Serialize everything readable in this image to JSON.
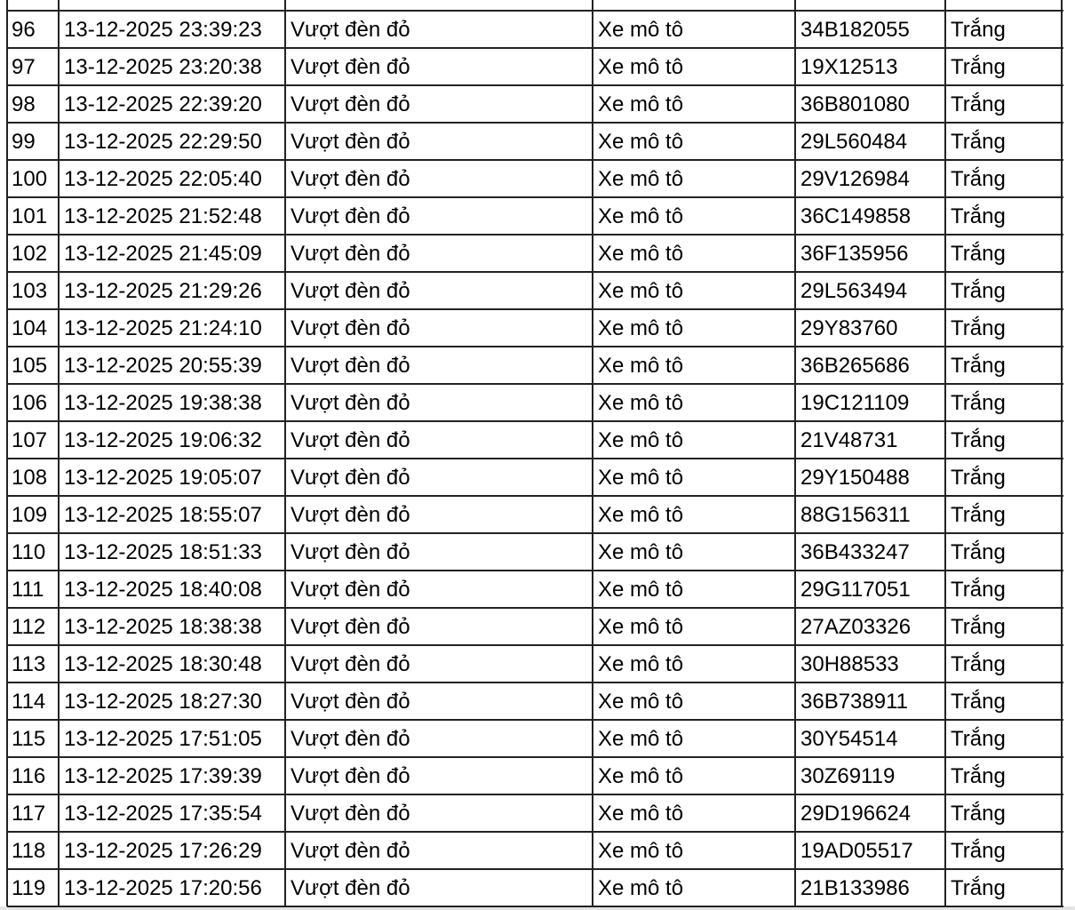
{
  "table": {
    "rows": [
      [
        "96",
        "13-12-2025 23:39:23",
        "Vượt đèn đỏ",
        "Xe mô tô",
        "34B182055",
        "Trắng"
      ],
      [
        "97",
        "13-12-2025 23:20:38",
        "Vượt đèn đỏ",
        "Xe mô tô",
        "19X12513",
        "Trắng"
      ],
      [
        "98",
        "13-12-2025 22:39:20",
        "Vượt đèn đỏ",
        "Xe mô tô",
        "36B801080",
        "Trắng"
      ],
      [
        "99",
        "13-12-2025 22:29:50",
        "Vượt đèn đỏ",
        "Xe mô tô",
        "29L560484",
        "Trắng"
      ],
      [
        "100",
        "13-12-2025 22:05:40",
        "Vượt đèn đỏ",
        "Xe mô tô",
        "29V126984",
        "Trắng"
      ],
      [
        "101",
        "13-12-2025 21:52:48",
        "Vượt đèn đỏ",
        "Xe mô tô",
        "36C149858",
        "Trắng"
      ],
      [
        "102",
        "13-12-2025 21:45:09",
        "Vượt đèn đỏ",
        "Xe mô tô",
        "36F135956",
        "Trắng"
      ],
      [
        "103",
        "13-12-2025 21:29:26",
        "Vượt đèn đỏ",
        "Xe mô tô",
        "29L563494",
        "Trắng"
      ],
      [
        "104",
        "13-12-2025 21:24:10",
        "Vượt đèn đỏ",
        "Xe mô tô",
        "29Y83760",
        "Trắng"
      ],
      [
        "105",
        "13-12-2025 20:55:39",
        "Vượt đèn đỏ",
        "Xe mô tô",
        "36B265686",
        "Trắng"
      ],
      [
        "106",
        "13-12-2025 19:38:38",
        "Vượt đèn đỏ",
        "Xe mô tô",
        "19C121109",
        "Trắng"
      ],
      [
        "107",
        "13-12-2025 19:06:32",
        "Vượt đèn đỏ",
        "Xe mô tô",
        "21V48731",
        "Trắng"
      ],
      [
        "108",
        "13-12-2025 19:05:07",
        "Vượt đèn đỏ",
        "Xe mô tô",
        "29Y150488",
        "Trắng"
      ],
      [
        "109",
        "13-12-2025 18:55:07",
        "Vượt đèn đỏ",
        "Xe mô tô",
        "88G156311",
        "Trắng"
      ],
      [
        "110",
        "13-12-2025 18:51:33",
        "Vượt đèn đỏ",
        "Xe mô tô",
        "36B433247",
        "Trắng"
      ],
      [
        "111",
        "13-12-2025 18:40:08",
        "Vượt đèn đỏ",
        "Xe mô tô",
        "29G117051",
        "Trắng"
      ],
      [
        "112",
        "13-12-2025 18:38:38",
        "Vượt đèn đỏ",
        "Xe mô tô",
        "27AZ03326",
        "Trắng"
      ],
      [
        "113",
        "13-12-2025 18:30:48",
        "Vượt đèn đỏ",
        "Xe mô tô",
        "30H88533",
        "Trắng"
      ],
      [
        "114",
        "13-12-2025 18:27:30",
        "Vượt đèn đỏ",
        "Xe mô tô",
        "36B738911",
        "Trắng"
      ],
      [
        "115",
        "13-12-2025 17:51:05",
        "Vượt đèn đỏ",
        "Xe mô tô",
        "30Y54514",
        "Trắng"
      ],
      [
        "116",
        "13-12-2025 17:39:39",
        "Vượt đèn đỏ",
        "Xe mô tô",
        "30Z69119",
        "Trắng"
      ],
      [
        "117",
        "13-12-2025 17:35:54",
        "Vượt đèn đỏ",
        "Xe mô tô",
        "29D196624",
        "Trắng"
      ],
      [
        "118",
        "13-12-2025 17:26:29",
        "Vượt đèn đỏ",
        "Xe mô tô",
        "19AD05517",
        "Trắng"
      ],
      [
        "119",
        "13-12-2025 17:20:56",
        "Vượt đèn đỏ",
        "Xe mô tô",
        "21B133986",
        "Trắng"
      ]
    ]
  }
}
